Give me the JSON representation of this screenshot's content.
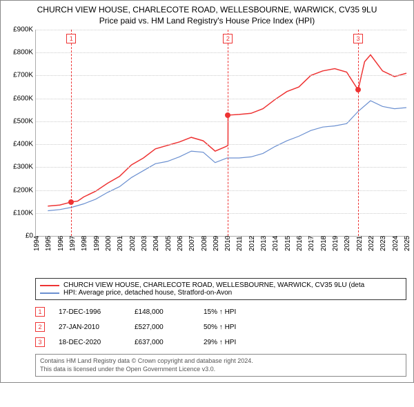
{
  "title": {
    "line1": "CHURCH VIEW HOUSE, CHARLECOTE ROAD, WELLESBOURNE, WARWICK, CV35 9LU",
    "line2": "Price paid vs. HM Land Registry's House Price Index (HPI)"
  },
  "chart": {
    "type": "line",
    "background_color": "#ffffff",
    "grid_color": "#cccccc",
    "axis_color": "#aaaaaa",
    "text_color": "#000000",
    "ylim": [
      0,
      900000
    ],
    "ytick_step": 100000,
    "yticks": [
      "£0",
      "£100K",
      "£200K",
      "£300K",
      "£400K",
      "£500K",
      "£600K",
      "£700K",
      "£800K",
      "£900K"
    ],
    "xlim": [
      1994,
      2025
    ],
    "xticks": [
      1994,
      1995,
      1996,
      1997,
      1998,
      1999,
      2000,
      2001,
      2002,
      2003,
      2004,
      2005,
      2006,
      2007,
      2008,
      2009,
      2010,
      2011,
      2012,
      2013,
      2014,
      2015,
      2016,
      2017,
      2018,
      2019,
      2020,
      2021,
      2022,
      2023,
      2024,
      2025
    ],
    "series": [
      {
        "name": "price_paid",
        "label": "CHURCH VIEW HOUSE, CHARLECOTE ROAD, WELLESBOURNE, WARWICK, CV35 9LU (deta",
        "color": "#ee3333",
        "line_width": 1.5,
        "data": [
          [
            1995.0,
            130000
          ],
          [
            1996.0,
            135000
          ],
          [
            1996.96,
            148000
          ],
          [
            1997.5,
            152000
          ],
          [
            1998,
            170000
          ],
          [
            1999,
            195000
          ],
          [
            2000,
            230000
          ],
          [
            2001,
            260000
          ],
          [
            2002,
            310000
          ],
          [
            2003,
            340000
          ],
          [
            2004,
            380000
          ],
          [
            2005,
            395000
          ],
          [
            2006,
            410000
          ],
          [
            2007,
            430000
          ],
          [
            2008,
            415000
          ],
          [
            2009,
            370000
          ],
          [
            2009.9,
            390000
          ],
          [
            2010.07,
            395000
          ],
          [
            2010.08,
            527000
          ],
          [
            2011,
            530000
          ],
          [
            2012,
            535000
          ],
          [
            2013,
            555000
          ],
          [
            2014,
            595000
          ],
          [
            2015,
            630000
          ],
          [
            2016,
            650000
          ],
          [
            2017,
            700000
          ],
          [
            2018,
            720000
          ],
          [
            2019,
            730000
          ],
          [
            2020,
            715000
          ],
          [
            2020.96,
            637000
          ],
          [
            2021.5,
            760000
          ],
          [
            2022,
            790000
          ],
          [
            2023,
            720000
          ],
          [
            2024,
            695000
          ],
          [
            2025,
            710000
          ]
        ]
      },
      {
        "name": "hpi",
        "label": "HPI: Average price, detached house, Stratford-on-Avon",
        "color": "#6a8fd0",
        "line_width": 1.2,
        "data": [
          [
            1995.0,
            110000
          ],
          [
            1996,
            115000
          ],
          [
            1997,
            125000
          ],
          [
            1998,
            140000
          ],
          [
            1999,
            160000
          ],
          [
            2000,
            190000
          ],
          [
            2001,
            215000
          ],
          [
            2002,
            255000
          ],
          [
            2003,
            285000
          ],
          [
            2004,
            315000
          ],
          [
            2005,
            325000
          ],
          [
            2006,
            345000
          ],
          [
            2007,
            370000
          ],
          [
            2008,
            365000
          ],
          [
            2009,
            320000
          ],
          [
            2010,
            340000
          ],
          [
            2011,
            340000
          ],
          [
            2012,
            345000
          ],
          [
            2013,
            360000
          ],
          [
            2014,
            390000
          ],
          [
            2015,
            415000
          ],
          [
            2016,
            435000
          ],
          [
            2017,
            460000
          ],
          [
            2018,
            475000
          ],
          [
            2019,
            480000
          ],
          [
            2020,
            490000
          ],
          [
            2021,
            545000
          ],
          [
            2022,
            590000
          ],
          [
            2023,
            565000
          ],
          [
            2024,
            555000
          ],
          [
            2025,
            560000
          ]
        ]
      }
    ],
    "markers": [
      {
        "num": "1",
        "x": 1996.96,
        "y": 148000,
        "color": "#ee3333"
      },
      {
        "num": "2",
        "x": 2010.07,
        "y": 527000,
        "color": "#ee3333"
      },
      {
        "num": "3",
        "x": 2020.96,
        "y": 637000,
        "color": "#ee3333"
      }
    ],
    "marker_line_color": "#ee3333"
  },
  "legend": {
    "border_color": "#333333",
    "items": [
      {
        "color": "#ee3333",
        "label": "CHURCH VIEW HOUSE, CHARLECOTE ROAD, WELLESBOURNE, WARWICK, CV35 9LU (deta"
      },
      {
        "color": "#6a8fd0",
        "label": "HPI: Average price, detached house, Stratford-on-Avon"
      }
    ]
  },
  "events": [
    {
      "num": "1",
      "date": "17-DEC-1996",
      "price": "£148,000",
      "delta": "15% ↑ HPI"
    },
    {
      "num": "2",
      "date": "27-JAN-2010",
      "price": "£527,000",
      "delta": "50% ↑ HPI"
    },
    {
      "num": "3",
      "date": "18-DEC-2020",
      "price": "£637,000",
      "delta": "29% ↑ HPI"
    }
  ],
  "footer": {
    "line1": "Contains HM Land Registry data © Crown copyright and database right 2024.",
    "line2": "This data is licensed under the Open Government Licence v3.0."
  }
}
